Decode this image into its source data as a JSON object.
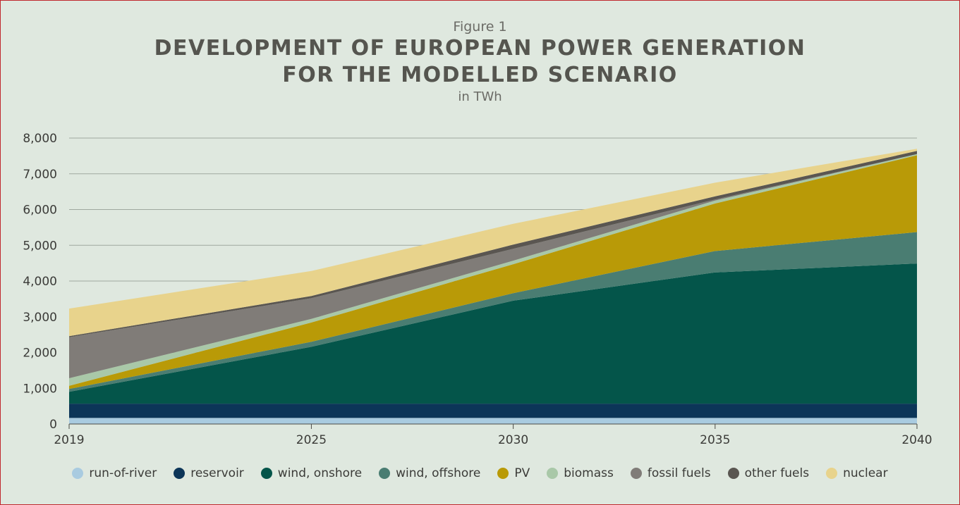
{
  "header": {
    "figure_label": "Figure 1",
    "title_line1": "DEVELOPMENT OF EUROPEAN POWER GENERATION",
    "title_line2": "FOR THE MODELLED SCENARIO",
    "unit": "in TWh"
  },
  "chart_data": {
    "type": "area",
    "stacked": true,
    "title": "DEVELOPMENT OF EUROPEAN POWER GENERATION FOR THE MODELLED SCENARIO",
    "subtitle": "in TWh",
    "xlabel": "",
    "ylabel": "",
    "x": [
      2019,
      2025,
      2030,
      2035,
      2040
    ],
    "xticks": [
      "2019",
      "2025",
      "2030",
      "2035",
      "2040"
    ],
    "ylim": [
      0,
      8000
    ],
    "yticks": [
      "0",
      "1,000",
      "2,000",
      "3,000",
      "4,000",
      "5,000",
      "6,000",
      "7,000",
      "8,000"
    ],
    "grid": true,
    "legend_position": "bottom",
    "series": [
      {
        "name": "run-of-river",
        "color": "#a9cbe0",
        "values": [
          170,
          170,
          170,
          170,
          170
        ]
      },
      {
        "name": "reservoir",
        "color": "#0c3558",
        "values": [
          400,
          400,
          400,
          400,
          400
        ]
      },
      {
        "name": "wind, onshore",
        "color": "#04554a",
        "values": [
          330,
          1590,
          2880,
          3670,
          3920
        ]
      },
      {
        "name": "wind, offshore",
        "color": "#4a7d72",
        "values": [
          80,
          140,
          210,
          600,
          880
        ]
      },
      {
        "name": "PV",
        "color": "#b99a07",
        "values": [
          90,
          540,
          810,
          1330,
          2150
        ]
      },
      {
        "name": "biomass",
        "color": "#a9c8a8",
        "values": [
          210,
          100,
          100,
          80,
          30
        ]
      },
      {
        "name": "fossil fuels",
        "color": "#807c78",
        "values": [
          1150,
          580,
          330,
          30,
          0
        ]
      },
      {
        "name": "other fuels",
        "color": "#5a5651",
        "values": [
          30,
          60,
          120,
          90,
          90
        ]
      },
      {
        "name": "nuclear",
        "color": "#e8d38c",
        "values": [
          770,
          700,
          580,
          380,
          60
        ]
      }
    ]
  }
}
